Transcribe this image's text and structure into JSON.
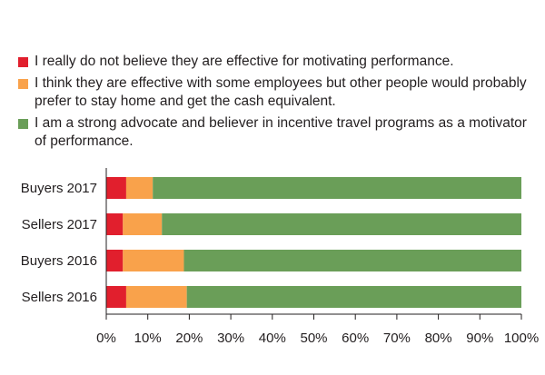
{
  "chart_data": {
    "type": "bar",
    "orientation": "horizontal",
    "stacked": true,
    "title": "",
    "xlabel": "",
    "ylabel": "",
    "categories": [
      "Buyers 2017",
      "Sellers 2017",
      "Buyers 2016",
      "Sellers 2016"
    ],
    "xlim": [
      0,
      100
    ],
    "x_ticks": [
      "0%",
      "10%",
      "20%",
      "30%",
      "40%",
      "50%",
      "60%",
      "70%",
      "80%",
      "90%",
      "100%"
    ],
    "grid": false,
    "legend_position": "top",
    "series": [
      {
        "name": "I really do not believe they are effective for motivating performance.",
        "color": "#e11f2d",
        "values": [
          4.8,
          4.0,
          4.0,
          4.8
        ]
      },
      {
        "name": "I think they are effective with some employees but other people would probably prefer to stay home and get the cash equivalent.",
        "color": "#f9a24b",
        "values": [
          6.4,
          9.4,
          14.7,
          14.6
        ]
      },
      {
        "name": "I am a strong advocate and believer in incentive travel programs as a motivator of performance.",
        "color": "#6a9e58",
        "values": [
          88.8,
          86.6,
          81.3,
          80.6
        ]
      }
    ]
  }
}
